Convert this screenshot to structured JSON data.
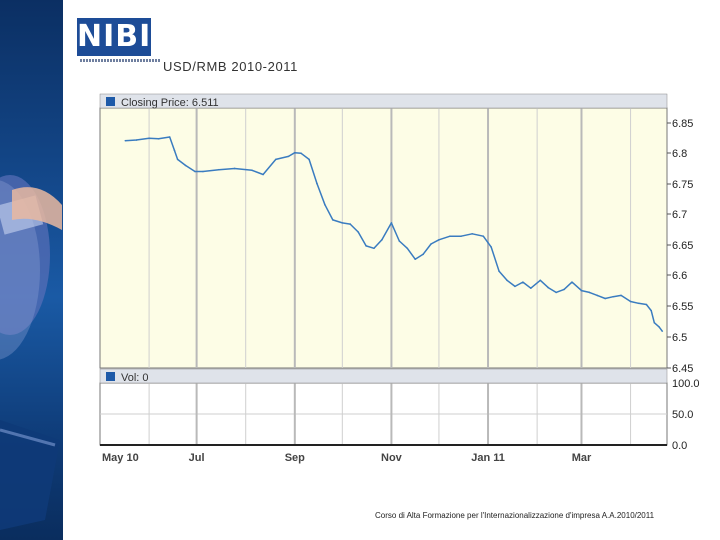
{
  "logo_text": "NIBI",
  "title": "USD/RMB  2010-2011",
  "footer": "Corso di Alta Formazione per l'Internazionalizzazione d'impresa A.A.2010/2011",
  "colors": {
    "line": "#3a7cc0",
    "price_bg": "#fdfde6",
    "legend_bg": "#dfe3ea",
    "grid": "#cfcfcf"
  },
  "chart_data": [
    {
      "type": "line",
      "legend": "Closing Price: 6.511",
      "ylim": [
        6.45,
        6.88
      ],
      "y_ticks": [
        "6.85",
        "6.8",
        "6.75",
        "6.7",
        "6.65",
        "6.6",
        "6.55",
        "6.5",
        "6.45"
      ],
      "x_tick_labels": [
        "May 10",
        "Jul",
        "Sep",
        "Nov",
        "Jan 11",
        "Mar"
      ],
      "series": [
        {
          "x": [
            "2010-05-17",
            "2010-05-24",
            "2010-06-01",
            "2010-06-07",
            "2010-06-14",
            "2010-06-17",
            "2010-06-19",
            "2010-06-24",
            "2010-06-30",
            "2010-07-05",
            "2010-07-15",
            "2010-07-25",
            "2010-08-05",
            "2010-08-12",
            "2010-08-20",
            "2010-08-28",
            "2010-09-01",
            "2010-09-05",
            "2010-09-10",
            "2010-09-15",
            "2010-09-20",
            "2010-09-25",
            "2010-10-01",
            "2010-10-06",
            "2010-10-11",
            "2010-10-16",
            "2010-10-21",
            "2010-10-26",
            "2010-11-01",
            "2010-11-06",
            "2010-11-11",
            "2010-11-16",
            "2010-11-21",
            "2010-11-26",
            "2010-12-01",
            "2010-12-08",
            "2010-12-15",
            "2010-12-22",
            "2010-12-29",
            "2011-01-03",
            "2011-01-08",
            "2011-01-13",
            "2011-01-18",
            "2011-01-23",
            "2011-01-28",
            "2011-02-03",
            "2011-02-08",
            "2011-02-13",
            "2011-02-18",
            "2011-02-23",
            "2011-03-01",
            "2011-03-06",
            "2011-03-11",
            "2011-03-16",
            "2011-03-21",
            "2011-03-26",
            "2011-04-01",
            "2011-04-06",
            "2011-04-11",
            "2011-04-14",
            "2011-04-16",
            "2011-04-19",
            "2011-04-21"
          ],
          "values": [
            6.826,
            6.827,
            6.83,
            6.829,
            6.832,
            6.81,
            6.795,
            6.785,
            6.775,
            6.775,
            6.778,
            6.78,
            6.777,
            6.77,
            6.795,
            6.8,
            6.806,
            6.805,
            6.795,
            6.755,
            6.72,
            6.695,
            6.69,
            6.688,
            6.675,
            6.652,
            6.648,
            6.662,
            6.69,
            6.66,
            6.648,
            6.63,
            6.638,
            6.655,
            6.662,
            6.668,
            6.668,
            6.672,
            6.668,
            6.65,
            6.61,
            6.595,
            6.585,
            6.592,
            6.582,
            6.595,
            6.583,
            6.575,
            6.58,
            6.592,
            6.578,
            6.575,
            6.57,
            6.565,
            6.568,
            6.57,
            6.56,
            6.557,
            6.555,
            6.545,
            6.525,
            6.518,
            6.511
          ]
        }
      ]
    },
    {
      "type": "bar",
      "legend": "Vol: 0",
      "ylim": [
        0,
        100
      ],
      "y_ticks": [
        "100.0",
        "50.0",
        "0.0"
      ],
      "values": []
    }
  ]
}
